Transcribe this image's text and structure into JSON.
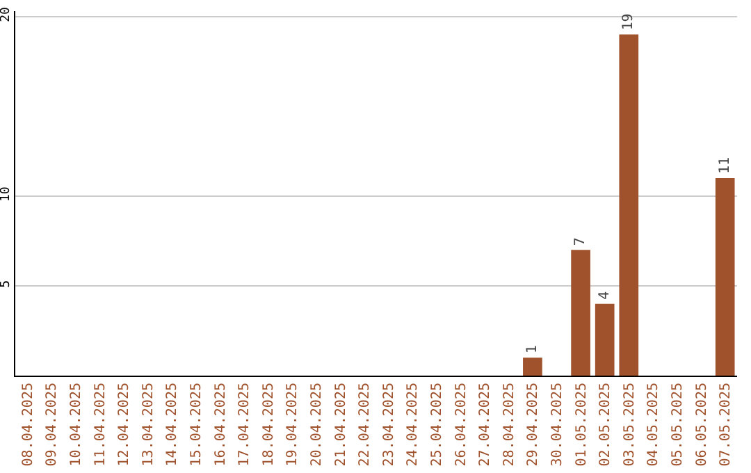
{
  "chart_data": {
    "type": "bar",
    "categories": [
      "08.04.2025",
      "09.04.2025",
      "10.04.2025",
      "11.04.2025",
      "12.04.2025",
      "13.04.2025",
      "14.04.2025",
      "15.04.2025",
      "16.04.2025",
      "17.04.2025",
      "18.04.2025",
      "19.04.2025",
      "20.04.2025",
      "21.04.2025",
      "22.04.2025",
      "23.04.2025",
      "24.04.2025",
      "25.04.2025",
      "26.04.2025",
      "27.04.2025",
      "28.04.2025",
      "29.04.2025",
      "30.04.2025",
      "01.05.2025",
      "02.05.2025",
      "03.05.2025",
      "04.05.2025",
      "05.05.2025",
      "06.05.2025",
      "07.05.2025"
    ],
    "values": [
      0,
      0,
      0,
      0,
      0,
      0,
      0,
      0,
      0,
      0,
      0,
      0,
      0,
      0,
      0,
      0,
      0,
      0,
      0,
      0,
      0,
      1,
      0,
      7,
      4,
      19,
      0,
      0,
      0,
      11
    ],
    "value_labels": [
      null,
      null,
      null,
      null,
      null,
      null,
      null,
      null,
      null,
      null,
      null,
      null,
      null,
      null,
      null,
      null,
      null,
      null,
      null,
      null,
      null,
      "1",
      null,
      "7",
      "4",
      "19",
      null,
      null,
      null,
      "11"
    ],
    "color": "#a0522d",
    "ylim": [
      0,
      20.3
    ],
    "yticks": [
      5,
      10,
      20
    ],
    "grid": "y"
  }
}
